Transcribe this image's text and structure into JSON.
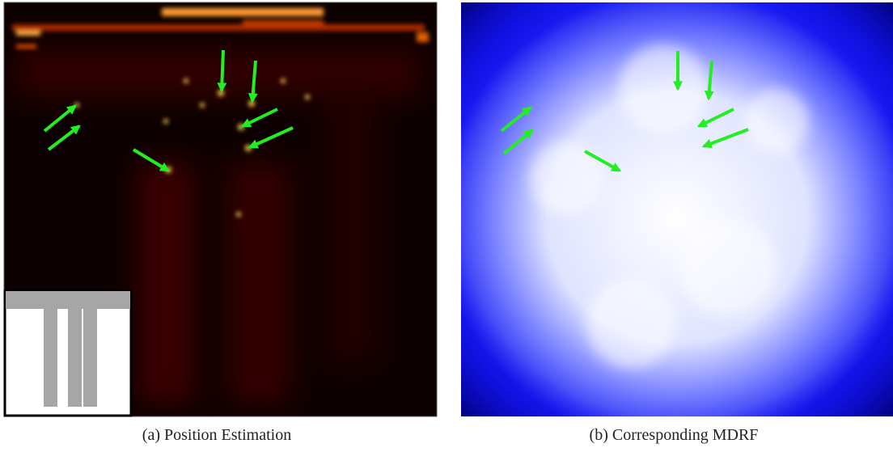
{
  "figure": {
    "captions": [
      "(a) Position Estimation",
      "(b) Corresponding MDRF"
    ]
  }
}
